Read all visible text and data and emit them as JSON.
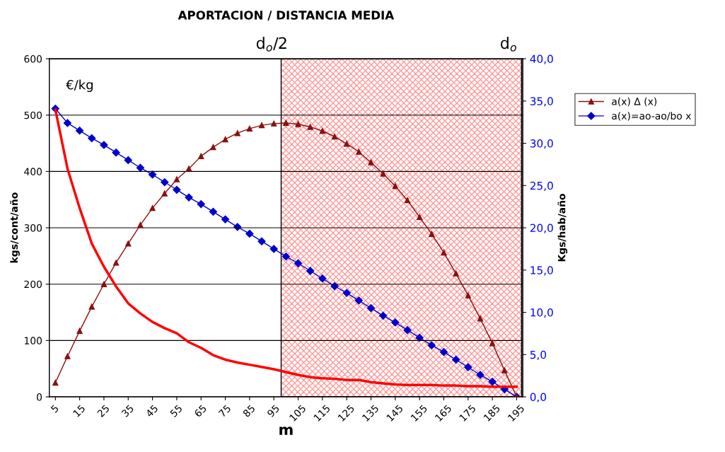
{
  "chart_data": {
    "type": "line",
    "title": "APORTACION / DISTANCIA MEDIA",
    "xlabel": "m",
    "ylabel": "kgs/cont/año",
    "y2label": "Kgs/hab/año",
    "x": [
      5,
      10,
      15,
      20,
      25,
      30,
      35,
      40,
      45,
      50,
      55,
      60,
      65,
      70,
      75,
      80,
      85,
      90,
      95,
      100,
      105,
      110,
      115,
      120,
      125,
      130,
      135,
      140,
      145,
      150,
      155,
      160,
      165,
      170,
      175,
      180,
      185,
      190,
      195
    ],
    "xlim": [
      2.5,
      197.5
    ],
    "xticks": [
      5,
      15,
      25,
      35,
      45,
      55,
      65,
      75,
      85,
      95,
      105,
      115,
      125,
      135,
      145,
      155,
      165,
      175,
      185,
      195
    ],
    "ylim": [
      0,
      600
    ],
    "yticks": [
      0,
      100,
      200,
      300,
      400,
      500,
      600
    ],
    "y2lim": [
      0,
      40
    ],
    "y2ticks": [
      {
        "value": 0,
        "label": "0,0"
      },
      {
        "value": 5,
        "label": "5,0"
      },
      {
        "value": 10,
        "label": "10,0"
      },
      {
        "value": 15,
        "label": "15,0"
      },
      {
        "value": 20,
        "label": "20,0"
      },
      {
        "value": 25,
        "label": "25,0"
      },
      {
        "value": 30,
        "label": "30,0"
      },
      {
        "value": 35,
        "label": "35,0"
      },
      {
        "value": 40,
        "label": "40,0"
      }
    ],
    "grid": "y",
    "legend": "right",
    "series": [
      {
        "name": "a(x) Δ (x)",
        "color": "#8b1010",
        "marker": "triangle",
        "values": [
          25,
          72,
          117,
          160,
          200,
          238,
          272,
          305,
          335,
          361,
          386,
          405,
          427,
          443,
          457,
          468,
          476,
          482,
          485,
          486,
          484,
          479,
          472,
          462,
          449,
          435,
          416,
          396,
          374,
          349,
          319,
          289,
          256,
          219,
          180,
          139,
          95,
          47,
          0
        ]
      },
      {
        "name": "a(x)=ao-ao/bo x",
        "color": "#0000cc",
        "marker": "diamond",
        "axis": "y2",
        "values": [
          34.1,
          32.4,
          31.5,
          30.6,
          29.8,
          28.9,
          28.0,
          27.1,
          26.3,
          25.4,
          24.5,
          23.6,
          22.8,
          21.9,
          21.0,
          20.1,
          19.3,
          18.4,
          17.5,
          16.6,
          15.8,
          14.9,
          14.0,
          13.1,
          12.3,
          11.4,
          10.5,
          9.6,
          8.8,
          7.9,
          7.0,
          6.1,
          5.3,
          4.4,
          3.5,
          2.6,
          1.8,
          0.9,
          0.0
        ]
      },
      {
        "color": "#ff0000",
        "marker": "none",
        "values": [
          510,
          405,
          335,
          272,
          231,
          196,
          166,
          148,
          133,
          122,
          113,
          97,
          87,
          74,
          66,
          61,
          57,
          53,
          49,
          44,
          39,
          35,
          33,
          32,
          30,
          30,
          26,
          24,
          22,
          21,
          21,
          21,
          20,
          20,
          19,
          19,
          18,
          18,
          18
        ]
      }
    ],
    "bands": [
      {
        "axis": "x",
        "from": 98,
        "to": 197,
        "color": "#ff9999"
      }
    ],
    "annotations": [
      "€/kg",
      "d$_{o}$/2",
      "d$_{o}$"
    ]
  }
}
